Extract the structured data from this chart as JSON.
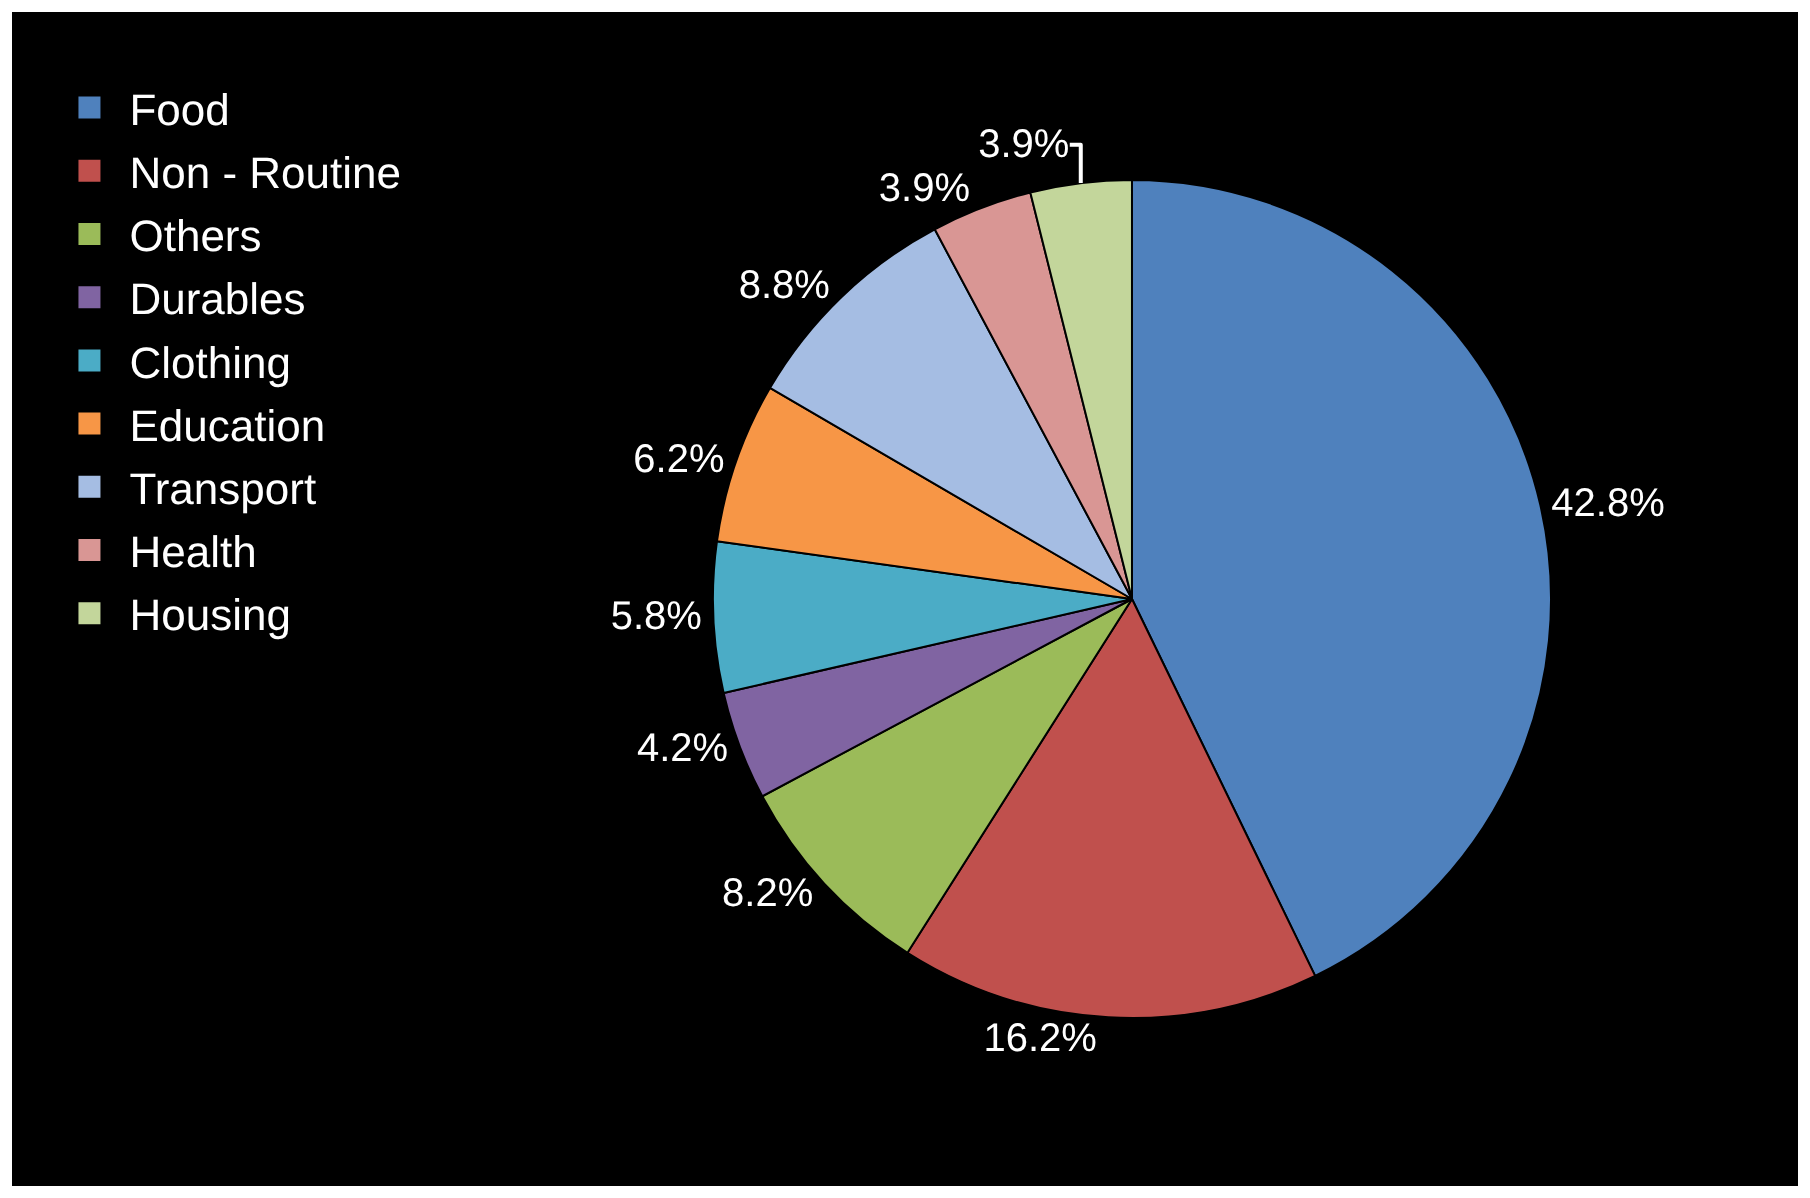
{
  "chart_data": {
    "type": "pie",
    "categories": [
      "Food",
      "Non - Routine",
      "Others",
      "Durables",
      "Clothing",
      "Education",
      "Transport",
      "Health",
      "Housing"
    ],
    "values": [
      42.8,
      16.2,
      8.2,
      4.2,
      5.8,
      6.2,
      8.8,
      3.9,
      3.9
    ],
    "value_labels": [
      "42.8%",
      "16.2%",
      "8.2%",
      "4.2%",
      "5.8%",
      "6.2%",
      "8.8%",
      "3.9%",
      "3.9%"
    ],
    "colors": [
      "#4f81bd",
      "#c0504d",
      "#9bbb59",
      "#8064a2",
      "#4bacc6",
      "#f79646",
      "#a5bde3",
      "#d99694",
      "#c3d69b"
    ],
    "legend": "top left"
  }
}
